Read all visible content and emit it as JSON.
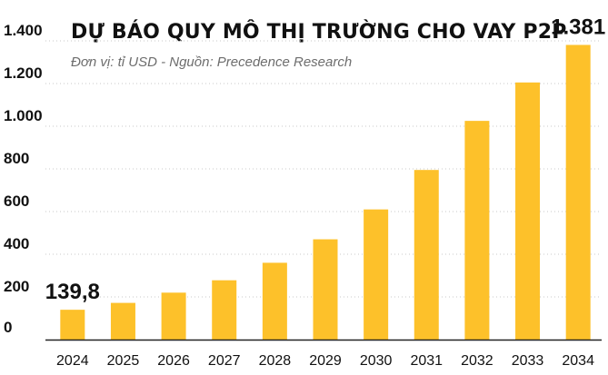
{
  "chart_data": {
    "type": "bar",
    "title": "DỰ BÁO QUY MÔ THỊ TRƯỜNG CHO VAY P2P",
    "subtitle": "Đơn vị: tỉ USD   -   Nguồn: Precedence Research",
    "categories": [
      "2024",
      "2025",
      "2026",
      "2027",
      "2028",
      "2029",
      "2030",
      "2031",
      "2032",
      "2033",
      "2034"
    ],
    "values": [
      139.8,
      172,
      220,
      278,
      360,
      470,
      610,
      795,
      1025,
      1205,
      1381
    ],
    "ylim": [
      0,
      1400
    ],
    "yticks": [
      0,
      200,
      400,
      600,
      800,
      1000,
      1200,
      1400
    ],
    "ytick_labels": [
      "0",
      "200",
      "400",
      "600",
      "800",
      "1.000",
      "1.200",
      "1.400"
    ],
    "data_labels": [
      {
        "index": 0,
        "text": "139,8"
      },
      {
        "index": 10,
        "text": "1.381"
      }
    ],
    "bar_color": "#fdc12a",
    "grid": true,
    "legend": "none"
  }
}
